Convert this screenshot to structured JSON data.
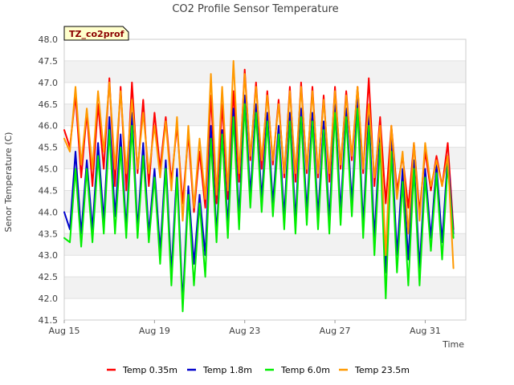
{
  "chart_data": {
    "type": "line",
    "title": "CO2 Profile Sensor Temperature",
    "xlabel": "Time",
    "ylabel": "Senor Temperature (C)",
    "site_label": "TZ_co2prof",
    "xlim_days": [
      0,
      17.8
    ],
    "ylim": [
      41.5,
      48.0
    ],
    "x_ticks": [
      {
        "day": 0,
        "label": "Aug 15"
      },
      {
        "day": 4,
        "label": "Aug 19"
      },
      {
        "day": 8,
        "label": "Aug 23"
      },
      {
        "day": 12,
        "label": "Aug 27"
      },
      {
        "day": 16,
        "label": "Aug 31"
      }
    ],
    "y_ticks": [
      "41.5",
      "42.0",
      "42.5",
      "43.0",
      "43.5",
      "44.0",
      "44.5",
      "45.0",
      "45.5",
      "46.0",
      "46.5",
      "47.0",
      "47.5",
      "48.0"
    ],
    "x_days": [
      0.0,
      0.25,
      0.5,
      0.75,
      1.0,
      1.25,
      1.5,
      1.75,
      2.0,
      2.25,
      2.5,
      2.75,
      3.0,
      3.25,
      3.5,
      3.75,
      4.0,
      4.25,
      4.5,
      4.75,
      5.0,
      5.25,
      5.5,
      5.75,
      6.0,
      6.25,
      6.5,
      6.75,
      7.0,
      7.25,
      7.5,
      7.75,
      8.0,
      8.25,
      8.5,
      8.75,
      9.0,
      9.25,
      9.5,
      9.75,
      10.0,
      10.25,
      10.5,
      10.75,
      11.0,
      11.25,
      11.5,
      11.75,
      12.0,
      12.25,
      12.5,
      12.75,
      13.0,
      13.25,
      13.5,
      13.75,
      14.0,
      14.25,
      14.5,
      14.75,
      15.0,
      15.25,
      15.5,
      15.75,
      16.0,
      16.25,
      16.5,
      16.75,
      17.0,
      17.25
    ],
    "series": [
      {
        "name": "Temp 0.35m",
        "color": "#ff0000",
        "values": [
          45.9,
          45.5,
          46.7,
          44.8,
          46.3,
          44.6,
          46.5,
          45.0,
          47.1,
          44.6,
          46.9,
          44.5,
          47.0,
          44.9,
          46.6,
          44.6,
          46.3,
          45.0,
          46.2,
          44.7,
          46.0,
          44.2,
          45.8,
          44.0,
          45.4,
          44.1,
          46.7,
          44.2,
          46.5,
          44.3,
          46.8,
          44.7,
          47.3,
          45.2,
          47.0,
          45.0,
          46.8,
          45.1,
          46.6,
          44.8,
          46.9,
          44.7,
          47.0,
          44.9,
          46.9,
          44.8,
          46.7,
          44.7,
          46.9,
          45.0,
          46.8,
          45.2,
          46.9,
          44.9,
          47.1,
          44.6,
          46.2,
          44.2,
          46.0,
          44.5,
          45.3,
          44.1,
          45.6,
          44.0,
          45.4,
          44.5,
          45.3,
          44.6,
          45.6,
          43.6
        ]
      },
      {
        "name": "Temp 1.8m",
        "color": "#0000cc",
        "values": [
          44.0,
          43.6,
          45.4,
          43.5,
          45.2,
          43.6,
          45.6,
          43.8,
          46.2,
          43.9,
          45.8,
          43.6,
          46.3,
          43.6,
          45.6,
          43.5,
          45.0,
          43.1,
          45.2,
          42.6,
          45.0,
          41.9,
          44.6,
          42.8,
          44.4,
          43.0,
          46.0,
          43.5,
          45.9,
          43.7,
          46.4,
          43.9,
          46.7,
          44.4,
          46.5,
          44.3,
          46.3,
          44.2,
          46.0,
          43.9,
          46.3,
          43.8,
          46.4,
          44.0,
          46.3,
          43.9,
          46.1,
          43.8,
          46.5,
          44.0,
          46.4,
          44.2,
          46.6,
          43.7,
          46.3,
          43.4,
          45.9,
          42.6,
          45.7,
          43.0,
          45.0,
          42.9,
          45.2,
          42.7,
          45.0,
          43.4,
          45.1,
          43.3,
          45.3,
          43.5
        ]
      },
      {
        "name": "Temp 6.0m",
        "color": "#00ee00",
        "values": [
          43.4,
          43.3,
          45.0,
          43.2,
          45.0,
          43.3,
          45.3,
          43.5,
          45.9,
          43.5,
          45.5,
          43.4,
          46.0,
          43.4,
          45.3,
          43.3,
          44.8,
          42.8,
          45.0,
          42.3,
          44.8,
          41.7,
          44.4,
          42.3,
          44.2,
          42.5,
          45.7,
          43.3,
          45.8,
          43.4,
          46.2,
          43.6,
          46.5,
          44.1,
          46.3,
          44.0,
          46.1,
          43.9,
          45.8,
          43.6,
          46.1,
          43.5,
          46.2,
          43.7,
          46.1,
          43.6,
          45.9,
          43.5,
          46.3,
          43.7,
          46.2,
          43.9,
          46.4,
          43.4,
          46.0,
          43.0,
          45.6,
          42.0,
          45.4,
          42.6,
          44.7,
          42.3,
          45.0,
          42.3,
          44.8,
          43.1,
          44.9,
          42.9,
          45.1,
          43.4
        ]
      },
      {
        "name": "Temp 23.5m",
        "color": "#ff9900",
        "values": [
          45.7,
          45.4,
          46.9,
          45.1,
          46.4,
          45.0,
          46.8,
          45.4,
          47.0,
          45.0,
          46.8,
          44.9,
          46.6,
          45.0,
          46.3,
          44.9,
          46.0,
          44.8,
          46.1,
          44.5,
          46.2,
          43.8,
          46.0,
          44.1,
          45.7,
          44.3,
          47.2,
          44.4,
          46.9,
          44.5,
          47.5,
          44.9,
          47.2,
          45.3,
          46.9,
          45.2,
          46.7,
          45.2,
          46.5,
          44.9,
          46.8,
          44.9,
          46.9,
          45.0,
          46.8,
          44.9,
          46.6,
          44.9,
          46.8,
          45.1,
          46.7,
          45.3,
          46.9,
          45.0,
          46.5,
          44.8,
          46.0,
          43.0,
          46.0,
          44.3,
          45.4,
          43.5,
          45.6,
          43.8,
          45.6,
          44.6,
          45.2,
          44.6,
          45.3,
          42.7
        ]
      }
    ],
    "legend_position": "bottom"
  }
}
